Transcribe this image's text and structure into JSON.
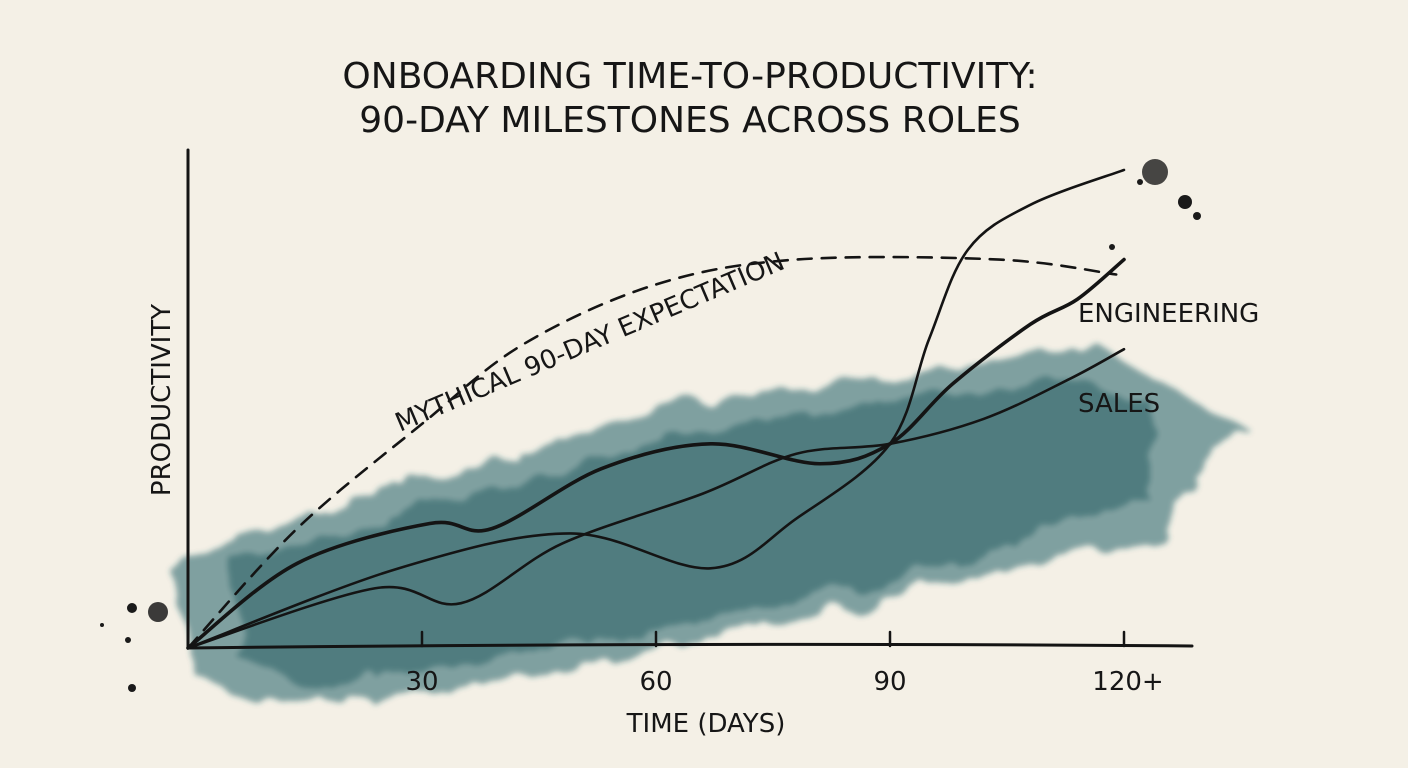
{
  "chart_data": {
    "type": "line",
    "title_lines": [
      "ONBOARDING TIME-TO-PRODUCTIVITY:",
      "90-DAY MILESTONES ACROSS ROLES"
    ],
    "xlabel": "TIME (DAYS)",
    "ylabel": "PRODUCTIVITY",
    "x_ticks": [
      30,
      60,
      90,
      120
    ],
    "x_tick_labels": [
      "30",
      "60",
      "90",
      "120+"
    ],
    "xlim": [
      0,
      130
    ],
    "ylim": [
      0,
      100
    ],
    "grid": false,
    "colors": {
      "ink": "#141414",
      "wash": "#1f5f66",
      "paper": "#f4f0e6"
    },
    "series": [
      {
        "name": "MYTHICAL 90-DAY EXPECTATION",
        "style": "dashed",
        "x": [
          0,
          14,
          30,
          43,
          60,
          78,
          104,
          119
        ],
        "y": [
          0,
          24,
          45,
          61,
          73,
          78,
          78,
          75
        ]
      },
      {
        "name": "ENGINEERING",
        "style": "solid-thick",
        "x": [
          0,
          14,
          31,
          39,
          53,
          67,
          81,
          90,
          98,
          108,
          114,
          120
        ],
        "y": [
          0,
          17,
          25,
          24,
          36,
          41,
          37,
          41,
          53,
          65,
          70,
          78
        ]
      },
      {
        "name": "SALES",
        "style": "solid",
        "x": [
          0,
          24,
          35,
          48,
          66,
          78,
          90,
          102,
          113,
          120
        ],
        "y": [
          0,
          12,
          9,
          21,
          31,
          39,
          41,
          46,
          54,
          60
        ]
      },
      {
        "style": "solid",
        "x": [
          0,
          27,
          49,
          67,
          78,
          90,
          95,
          100,
          108,
          120
        ],
        "y": [
          0,
          16,
          23,
          16,
          26,
          41,
          62,
          80,
          89,
          96
        ]
      }
    ]
  }
}
